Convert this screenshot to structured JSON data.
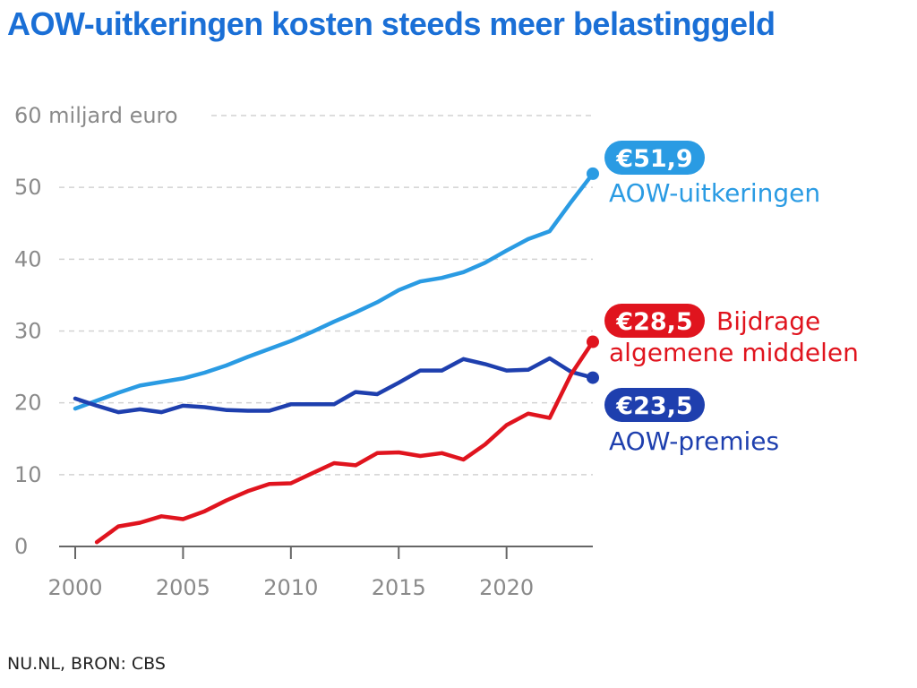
{
  "header": {
    "title": "AOW-uitkeringen kosten steeds meer belastinggeld"
  },
  "footer": {
    "source": "NU.NL, BRON: CBS"
  },
  "chart_data": {
    "type": "line",
    "title": "AOW-uitkeringen kosten steeds meer belastinggeld",
    "ylabel": "60 miljard euro",
    "ylim": [
      0,
      60
    ],
    "xlim": [
      2000,
      2024
    ],
    "yticks": [
      0,
      10,
      20,
      30,
      40,
      50
    ],
    "yticks_top_label": "60 miljard euro",
    "xticks": [
      2000,
      2005,
      2010,
      2015,
      2020
    ],
    "series": [
      {
        "name": "AOW-uitkeringen",
        "color": "#2a9be3",
        "x": [
          2000,
          2001,
          2002,
          2003,
          2004,
          2005,
          2006,
          2007,
          2008,
          2009,
          2010,
          2011,
          2012,
          2013,
          2014,
          2015,
          2016,
          2017,
          2018,
          2019,
          2020,
          2021,
          2022,
          2023,
          2024
        ],
        "values": [
          19.2,
          20.3,
          21.4,
          22.4,
          22.9,
          23.4,
          24.2,
          25.2,
          26.4,
          27.5,
          28.6,
          29.9,
          31.3,
          32.6,
          34.0,
          35.7,
          36.9,
          37.4,
          38.2,
          39.5,
          41.2,
          42.8,
          43.9,
          48.0,
          51.9
        ],
        "end_label": "€51,9",
        "label_lines": [
          "AOW-uitkeringen"
        ]
      },
      {
        "name": "AOW-premies",
        "color": "#1e3fae",
        "x": [
          2000,
          2001,
          2002,
          2003,
          2004,
          2005,
          2006,
          2007,
          2008,
          2009,
          2010,
          2011,
          2012,
          2013,
          2014,
          2015,
          2016,
          2017,
          2018,
          2019,
          2020,
          2021,
          2022,
          2023,
          2024
        ],
        "values": [
          20.6,
          19.6,
          18.7,
          19.1,
          18.7,
          19.6,
          19.4,
          19.0,
          18.9,
          18.9,
          19.8,
          19.8,
          19.8,
          21.5,
          21.2,
          22.8,
          24.5,
          24.5,
          26.1,
          25.4,
          24.5,
          24.6,
          26.2,
          24.3,
          23.5
        ],
        "end_label": "€23,5",
        "label_lines": [
          "AOW-premies"
        ]
      },
      {
        "name": "Bijdrage algemene middelen",
        "color": "#e0141e",
        "x": [
          2001,
          2002,
          2003,
          2004,
          2005,
          2006,
          2007,
          2008,
          2009,
          2010,
          2011,
          2012,
          2013,
          2014,
          2015,
          2016,
          2017,
          2018,
          2019,
          2020,
          2021,
          2022,
          2023,
          2024
        ],
        "values": [
          0.6,
          2.8,
          3.3,
          4.2,
          3.8,
          4.9,
          6.4,
          7.7,
          8.7,
          8.8,
          10.2,
          11.6,
          11.3,
          13.0,
          13.1,
          12.6,
          13.0,
          12.1,
          14.2,
          16.9,
          18.5,
          17.9,
          24.0,
          28.5
        ],
        "end_label": "€28,5",
        "label_lines": [
          "Bijdrage",
          "algemene middelen"
        ]
      }
    ]
  }
}
